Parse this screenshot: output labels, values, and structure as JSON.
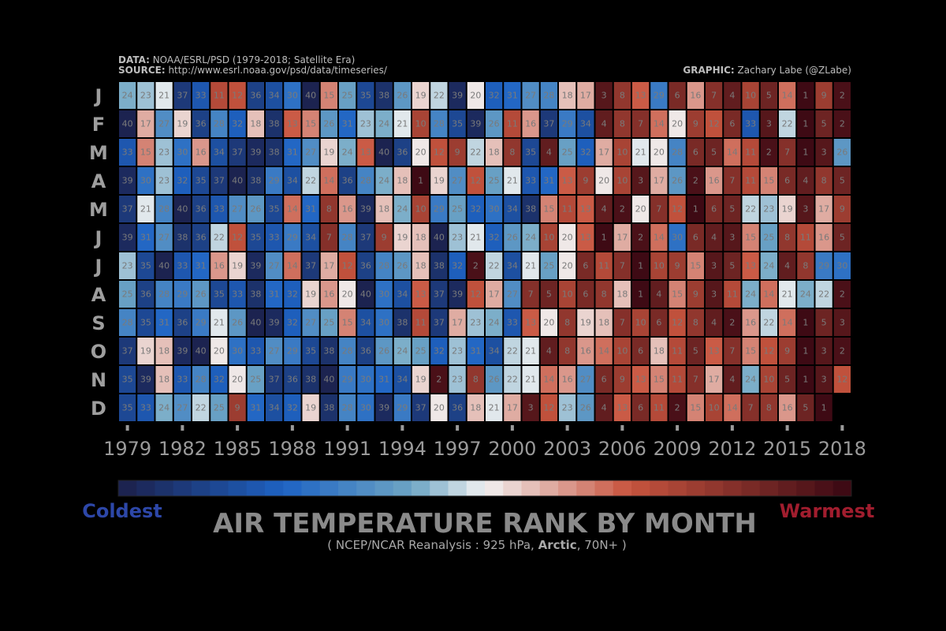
{
  "header": {
    "data_label": "DATA:",
    "data_text": " NOAA/ESRL/PSD (1979-2018; Satellite Era)",
    "source_label": "SOURCE:",
    "source_text": " http://www.esrl.noaa.gov/psd/data/timeseries/",
    "graphic_label": "GRAPHIC:",
    "graphic_text": " Zachary Labe (@ZLabe)"
  },
  "footer": {
    "title": "AIR TEMPERATURE RANK BY MONTH",
    "subtitle_pre": "( NCEP/NCAR Reanalysis : 925 hPa, ",
    "subtitle_bold": "Arctic",
    "subtitle_post": ", 70N+ )",
    "coldest_label": "Coldest",
    "warmest_label": "Warmest",
    "coldest_color": "#2d47a8",
    "warmest_color": "#a11d2e"
  },
  "chart_data": {
    "type": "heatmap",
    "value_meaning": "rank (1 = warmest, 40 = coldest)",
    "rank_range": [
      1,
      40
    ],
    "colors": {
      "coldest": "#1c2350",
      "cold": "#1e63c4",
      "cool": "#6fa6c4",
      "neutral": "#f2f2f2",
      "warm": "#c8553f",
      "warmest": "#3e0a14"
    },
    "row_labels": [
      "J",
      "F",
      "M",
      "A",
      "M",
      "J",
      "J",
      "A",
      "S",
      "O",
      "N",
      "D"
    ],
    "columns": [
      1979,
      1980,
      1981,
      1982,
      1983,
      1984,
      1985,
      1986,
      1987,
      1988,
      1989,
      1990,
      1991,
      1992,
      1993,
      1994,
      1995,
      1996,
      1997,
      1998,
      1999,
      2000,
      2001,
      2002,
      2003,
      2004,
      2005,
      2006,
      2007,
      2008,
      2009,
      2010,
      2011,
      2012,
      2013,
      2014,
      2015,
      2016,
      2017,
      2018
    ],
    "x_tick_labels": [
      "1979",
      "1982",
      "1985",
      "1988",
      "1991",
      "1994",
      "1997",
      "2000",
      "2003",
      "2006",
      "2009",
      "2012",
      "2015",
      "2018"
    ],
    "x_tick_years": [
      1979,
      1982,
      1985,
      1988,
      1991,
      1994,
      1997,
      2000,
      2003,
      2006,
      2009,
      2012,
      2015,
      2018
    ],
    "values": [
      [
        24,
        23,
        21,
        37,
        33,
        11,
        12,
        36,
        34,
        30,
        40,
        15,
        25,
        35,
        38,
        26,
        19,
        22,
        39,
        20,
        32,
        31,
        27,
        28,
        18,
        17,
        3,
        8,
        13,
        29,
        6,
        16,
        7,
        4,
        10,
        5,
        14,
        1,
        9,
        2
      ],
      [
        40,
        17,
        27,
        19,
        36,
        28,
        32,
        18,
        38,
        13,
        15,
        26,
        31,
        23,
        24,
        21,
        10,
        28,
        35,
        39,
        26,
        11,
        16,
        37,
        29,
        34,
        4,
        8,
        7,
        14,
        20,
        9,
        12,
        6,
        33,
        3,
        22,
        1,
        5,
        2
      ],
      [
        33,
        15,
        23,
        30,
        16,
        34,
        37,
        39,
        38,
        31,
        27,
        19,
        24,
        13,
        40,
        36,
        20,
        12,
        9,
        22,
        18,
        8,
        35,
        4,
        25,
        32,
        17,
        10,
        21,
        20,
        28,
        6,
        5,
        14,
        11,
        2,
        7,
        1,
        3,
        26
      ],
      [
        39,
        30,
        23,
        32,
        35,
        37,
        40,
        38,
        29,
        34,
        22,
        14,
        36,
        28,
        24,
        18,
        1,
        19,
        27,
        12,
        25,
        21,
        33,
        31,
        13,
        9,
        20,
        10,
        3,
        17,
        26,
        2,
        16,
        7,
        11,
        15,
        6,
        4,
        8,
        5
      ],
      [
        37,
        21,
        28,
        40,
        36,
        33,
        27,
        26,
        35,
        14,
        31,
        8,
        16,
        39,
        18,
        24,
        10,
        29,
        25,
        32,
        30,
        34,
        38,
        15,
        11,
        13,
        4,
        2,
        20,
        7,
        12,
        1,
        6,
        5,
        22,
        23,
        19,
        3,
        17,
        9
      ],
      [
        39,
        31,
        27,
        38,
        36,
        22,
        12,
        35,
        33,
        29,
        34,
        7,
        28,
        37,
        9,
        19,
        18,
        40,
        23,
        21,
        32,
        26,
        24,
        10,
        20,
        13,
        1,
        17,
        2,
        14,
        30,
        6,
        4,
        3,
        15,
        25,
        8,
        11,
        16,
        5
      ],
      [
        23,
        35,
        40,
        33,
        31,
        16,
        19,
        39,
        27,
        14,
        37,
        17,
        12,
        36,
        28,
        26,
        18,
        38,
        32,
        2,
        22,
        34,
        21,
        25,
        20,
        6,
        11,
        7,
        1,
        10,
        9,
        15,
        3,
        5,
        13,
        24,
        4,
        8,
        29,
        30
      ],
      [
        25,
        36,
        28,
        29,
        26,
        35,
        33,
        38,
        31,
        32,
        19,
        16,
        20,
        40,
        30,
        34,
        13,
        37,
        39,
        12,
        17,
        27,
        7,
        5,
        10,
        6,
        8,
        18,
        1,
        4,
        15,
        9,
        3,
        11,
        24,
        14,
        21,
        24,
        22,
        2
      ],
      [
        28,
        35,
        31,
        36,
        29,
        21,
        26,
        40,
        39,
        32,
        27,
        25,
        15,
        34,
        30,
        38,
        11,
        37,
        17,
        23,
        24,
        33,
        13,
        20,
        8,
        19,
        18,
        7,
        10,
        6,
        12,
        8,
        4,
        2,
        16,
        22,
        14,
        1,
        5,
        3
      ],
      [
        37,
        19,
        18,
        39,
        40,
        20,
        30,
        33,
        27,
        29,
        35,
        38,
        28,
        36,
        26,
        24,
        25,
        32,
        23,
        31,
        34,
        22,
        21,
        4,
        8,
        16,
        14,
        10,
        6,
        18,
        11,
        5,
        13,
        7,
        15,
        12,
        9,
        1,
        3,
        2
      ],
      [
        35,
        39,
        18,
        33,
        28,
        32,
        20,
        25,
        37,
        36,
        38,
        40,
        29,
        30,
        31,
        34,
        19,
        2,
        23,
        8,
        26,
        22,
        21,
        14,
        16,
        27,
        6,
        9,
        13,
        15,
        11,
        7,
        17,
        4,
        24,
        10,
        5,
        1,
        3,
        12
      ],
      [
        35,
        33,
        24,
        27,
        22,
        25,
        9,
        31,
        34,
        32,
        19,
        38,
        28,
        30,
        39,
        29,
        37,
        20,
        36,
        18,
        21,
        17,
        3,
        12,
        23,
        26,
        4,
        13,
        6,
        11,
        2,
        15,
        10,
        14,
        7,
        8,
        16,
        5,
        1,
        null
      ]
    ]
  }
}
